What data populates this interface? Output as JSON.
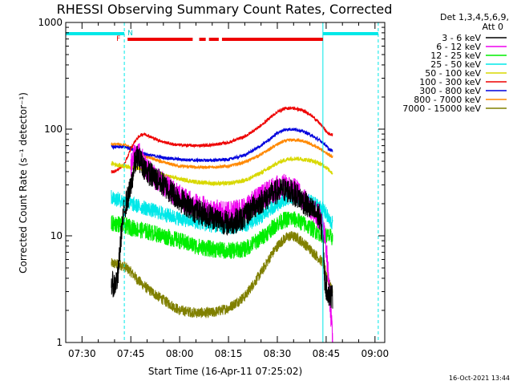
{
  "chart_data": {
    "type": "line",
    "title": "RHESSI Observing Summary Count Rates, Corrected",
    "xlabel": "Start Time (16-Apr-11 07:25:02)",
    "ylabel": "Corrected Count Rate (s⁻¹ detector⁻¹)",
    "yscale": "log",
    "xlim": [
      25,
      123
    ],
    "ylim": [
      1,
      1000
    ],
    "xticks": [
      {
        "x": 30,
        "label": "07:30"
      },
      {
        "x": 45,
        "label": "07:45"
      },
      {
        "x": 60,
        "label": "08:00"
      },
      {
        "x": 75,
        "label": "08:15"
      },
      {
        "x": 90,
        "label": "08:30"
      },
      {
        "x": 105,
        "label": "08:45"
      },
      {
        "x": 120,
        "label": "09:00"
      }
    ],
    "yticks": [
      {
        "y": 1,
        "label": "1"
      },
      {
        "y": 10,
        "label": "10"
      },
      {
        "y": 100,
        "label": "100"
      },
      {
        "y": 1000,
        "label": "1000"
      }
    ],
    "detectors": "Det 1,3,4,5,6,9,",
    "attenuator": "Att 0",
    "timestamp": "16-Oct-2021 13:44",
    "legend_position": "right",
    "grid": false,
    "flag_labels": {
      "eclipse": "N",
      "flare": "F"
    },
    "night_markers_x": [
      25,
      43,
      104,
      121
    ],
    "night_bars": [
      [
        25,
        43
      ],
      [
        104,
        121
      ]
    ],
    "flare_segments": [
      [
        44,
        64
      ],
      [
        66,
        68
      ],
      [
        69,
        72
      ],
      [
        73,
        104
      ]
    ],
    "series": [
      {
        "name": "3 - 6 keV",
        "color": "#000000",
        "noise": 0.12,
        "x": [
          39,
          40,
          41,
          42,
          43,
          45,
          46,
          47,
          48,
          50,
          55,
          60,
          65,
          70,
          75,
          80,
          82,
          84,
          86,
          88,
          90,
          92,
          94,
          96,
          98,
          100,
          102,
          103,
          104,
          104.5,
          105,
          106,
          107
        ],
        "y": [
          3.5,
          3.5,
          4,
          10,
          18,
          28,
          45,
          55,
          50,
          40,
          30,
          22,
          17,
          15,
          13,
          15,
          18,
          20,
          22,
          24,
          26,
          27,
          26,
          24,
          21,
          18,
          16,
          15,
          10,
          4,
          3.3,
          2.8,
          2.7
        ]
      },
      {
        "name": "6 - 12 keV",
        "color": "#ee00ee",
        "noise": 0.12,
        "x": [
          45,
          46,
          47,
          48,
          50,
          55,
          60,
          65,
          70,
          75,
          80,
          82,
          84,
          86,
          88,
          90,
          92,
          94,
          96,
          98,
          100,
          102,
          103,
          104,
          105,
          106,
          107
        ],
        "y": [
          45,
          55,
          60,
          55,
          42,
          30,
          23,
          19,
          17,
          16,
          18,
          20,
          22,
          24,
          26,
          28,
          29,
          28,
          26,
          22,
          19,
          16,
          15,
          12,
          8,
          3,
          1
        ]
      },
      {
        "name": "12 - 25 keV",
        "color": "#00ee00",
        "noise": 0.08,
        "x": [
          39,
          41,
          43,
          45,
          47,
          50,
          55,
          60,
          65,
          70,
          75,
          80,
          85,
          88,
          90,
          92,
          94,
          96,
          98,
          100,
          102,
          104,
          105,
          106,
          107
        ],
        "y": [
          13,
          13,
          12.5,
          12,
          11.5,
          11,
          10,
          9,
          8,
          7.5,
          7.2,
          7.5,
          9.5,
          11.5,
          13,
          14,
          14.5,
          14,
          13,
          12,
          11,
          10.2,
          10,
          9.8,
          9.6
        ]
      },
      {
        "name": "25 - 50 keV",
        "color": "#00e8e8",
        "noise": 0.07,
        "x": [
          39,
          41,
          43,
          45,
          47,
          50,
          55,
          60,
          65,
          70,
          75,
          80,
          85,
          88,
          90,
          92,
          94,
          96,
          98,
          100,
          102,
          104,
          105,
          106,
          107
        ],
        "y": [
          23,
          22,
          21,
          20,
          19,
          18,
          16,
          14.5,
          13.5,
          12.5,
          12,
          12.5,
          15,
          18,
          20,
          22,
          23,
          23,
          22,
          21,
          19.5,
          18,
          16,
          14,
          13
        ]
      },
      {
        "name": "50 - 100 keV",
        "color": "#d8d800",
        "noise": 0.02,
        "x": [
          39,
          41,
          43,
          45,
          47,
          50,
          55,
          60,
          65,
          70,
          75,
          80,
          85,
          88,
          90,
          92,
          94,
          96,
          98,
          100,
          102,
          104,
          105,
          106,
          107
        ],
        "y": [
          48,
          46,
          45,
          44,
          43,
          41,
          37,
          34,
          32,
          31,
          31,
          33,
          39,
          44,
          48,
          51,
          53,
          53,
          52,
          51,
          49,
          46,
          44,
          41,
          39
        ]
      },
      {
        "name": "100 - 300 keV",
        "color": "#ee0000",
        "noise": 0.015,
        "x": [
          39,
          40,
          41,
          42,
          43,
          44,
          45,
          46,
          47,
          48,
          49,
          50,
          52,
          55,
          58,
          60,
          65,
          70,
          75,
          80,
          85,
          88,
          90,
          92,
          94,
          96,
          98,
          100,
          102,
          104,
          105,
          106,
          107
        ],
        "y": [
          40,
          40,
          42,
          44,
          47,
          55,
          65,
          75,
          82,
          88,
          90,
          88,
          82,
          76,
          72,
          71,
          70,
          71,
          75,
          85,
          108,
          130,
          145,
          155,
          158,
          155,
          148,
          138,
          122,
          105,
          95,
          90,
          88
        ]
      },
      {
        "name": "300 - 800 keV",
        "color": "#0000dd",
        "noise": 0.015,
        "x": [
          39,
          41,
          43,
          45,
          47,
          50,
          55,
          60,
          65,
          70,
          75,
          80,
          85,
          88,
          90,
          92,
          94,
          96,
          98,
          100,
          102,
          104,
          105,
          106,
          107
        ],
        "y": [
          68,
          68,
          68,
          66,
          62,
          58,
          54,
          52,
          51,
          51,
          52,
          57,
          70,
          82,
          92,
          98,
          100,
          99,
          95,
          89,
          82,
          75,
          70,
          64,
          63
        ]
      },
      {
        "name": "800 - 7000 keV",
        "color": "#ff8800",
        "noise": 0.015,
        "x": [
          39,
          41,
          43,
          45,
          47,
          50,
          55,
          60,
          65,
          70,
          75,
          80,
          85,
          88,
          90,
          92,
          94,
          96,
          98,
          100,
          102,
          104,
          105,
          106,
          107
        ],
        "y": [
          72,
          72,
          71,
          68,
          62,
          55,
          49,
          45,
          44,
          44,
          45,
          49,
          58,
          66,
          72,
          77,
          79,
          79,
          77,
          73,
          68,
          63,
          60,
          57,
          55
        ]
      },
      {
        "name": "7000 - 15000 keV",
        "color": "#808000",
        "noise": 0.05,
        "x": [
          39,
          41,
          43,
          45,
          47,
          50,
          55,
          60,
          65,
          70,
          75,
          80,
          85,
          88,
          90,
          92,
          94,
          96,
          98,
          100,
          102,
          104,
          105,
          106,
          107
        ],
        "y": [
          5.5,
          5.4,
          5.2,
          4.6,
          3.9,
          3.2,
          2.5,
          2.0,
          1.9,
          1.9,
          2.1,
          2.7,
          4.5,
          6.5,
          8,
          9.3,
          10,
          9.6,
          8.6,
          7.5,
          6.5,
          5.6,
          4.5,
          3.5,
          3.0
        ]
      }
    ]
  }
}
